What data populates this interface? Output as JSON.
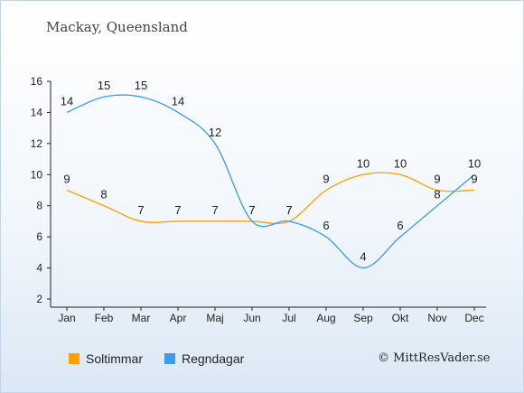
{
  "chart_data": {
    "type": "line",
    "title": "Mackay, Queensland",
    "categories": [
      "Jan",
      "Feb",
      "Mar",
      "Apr",
      "Maj",
      "Jun",
      "Jul",
      "Aug",
      "Sep",
      "Okt",
      "Nov",
      "Dec"
    ],
    "ylim": [
      2,
      16
    ],
    "yticks": [
      2,
      4,
      6,
      8,
      10,
      12,
      14,
      16
    ],
    "grid": false,
    "legend_position": "bottom-left",
    "series": [
      {
        "name": "Soltimmar",
        "color": "#ff9f00",
        "values": [
          9,
          8,
          7,
          7,
          7,
          7,
          7,
          9,
          10,
          10,
          9,
          9
        ]
      },
      {
        "name": "Regndagar",
        "color": "#3d9be8",
        "values": [
          14,
          15,
          15,
          14,
          12,
          7,
          7,
          6,
          4,
          6,
          8,
          10
        ]
      }
    ]
  },
  "credit": "© MittResVader.se"
}
